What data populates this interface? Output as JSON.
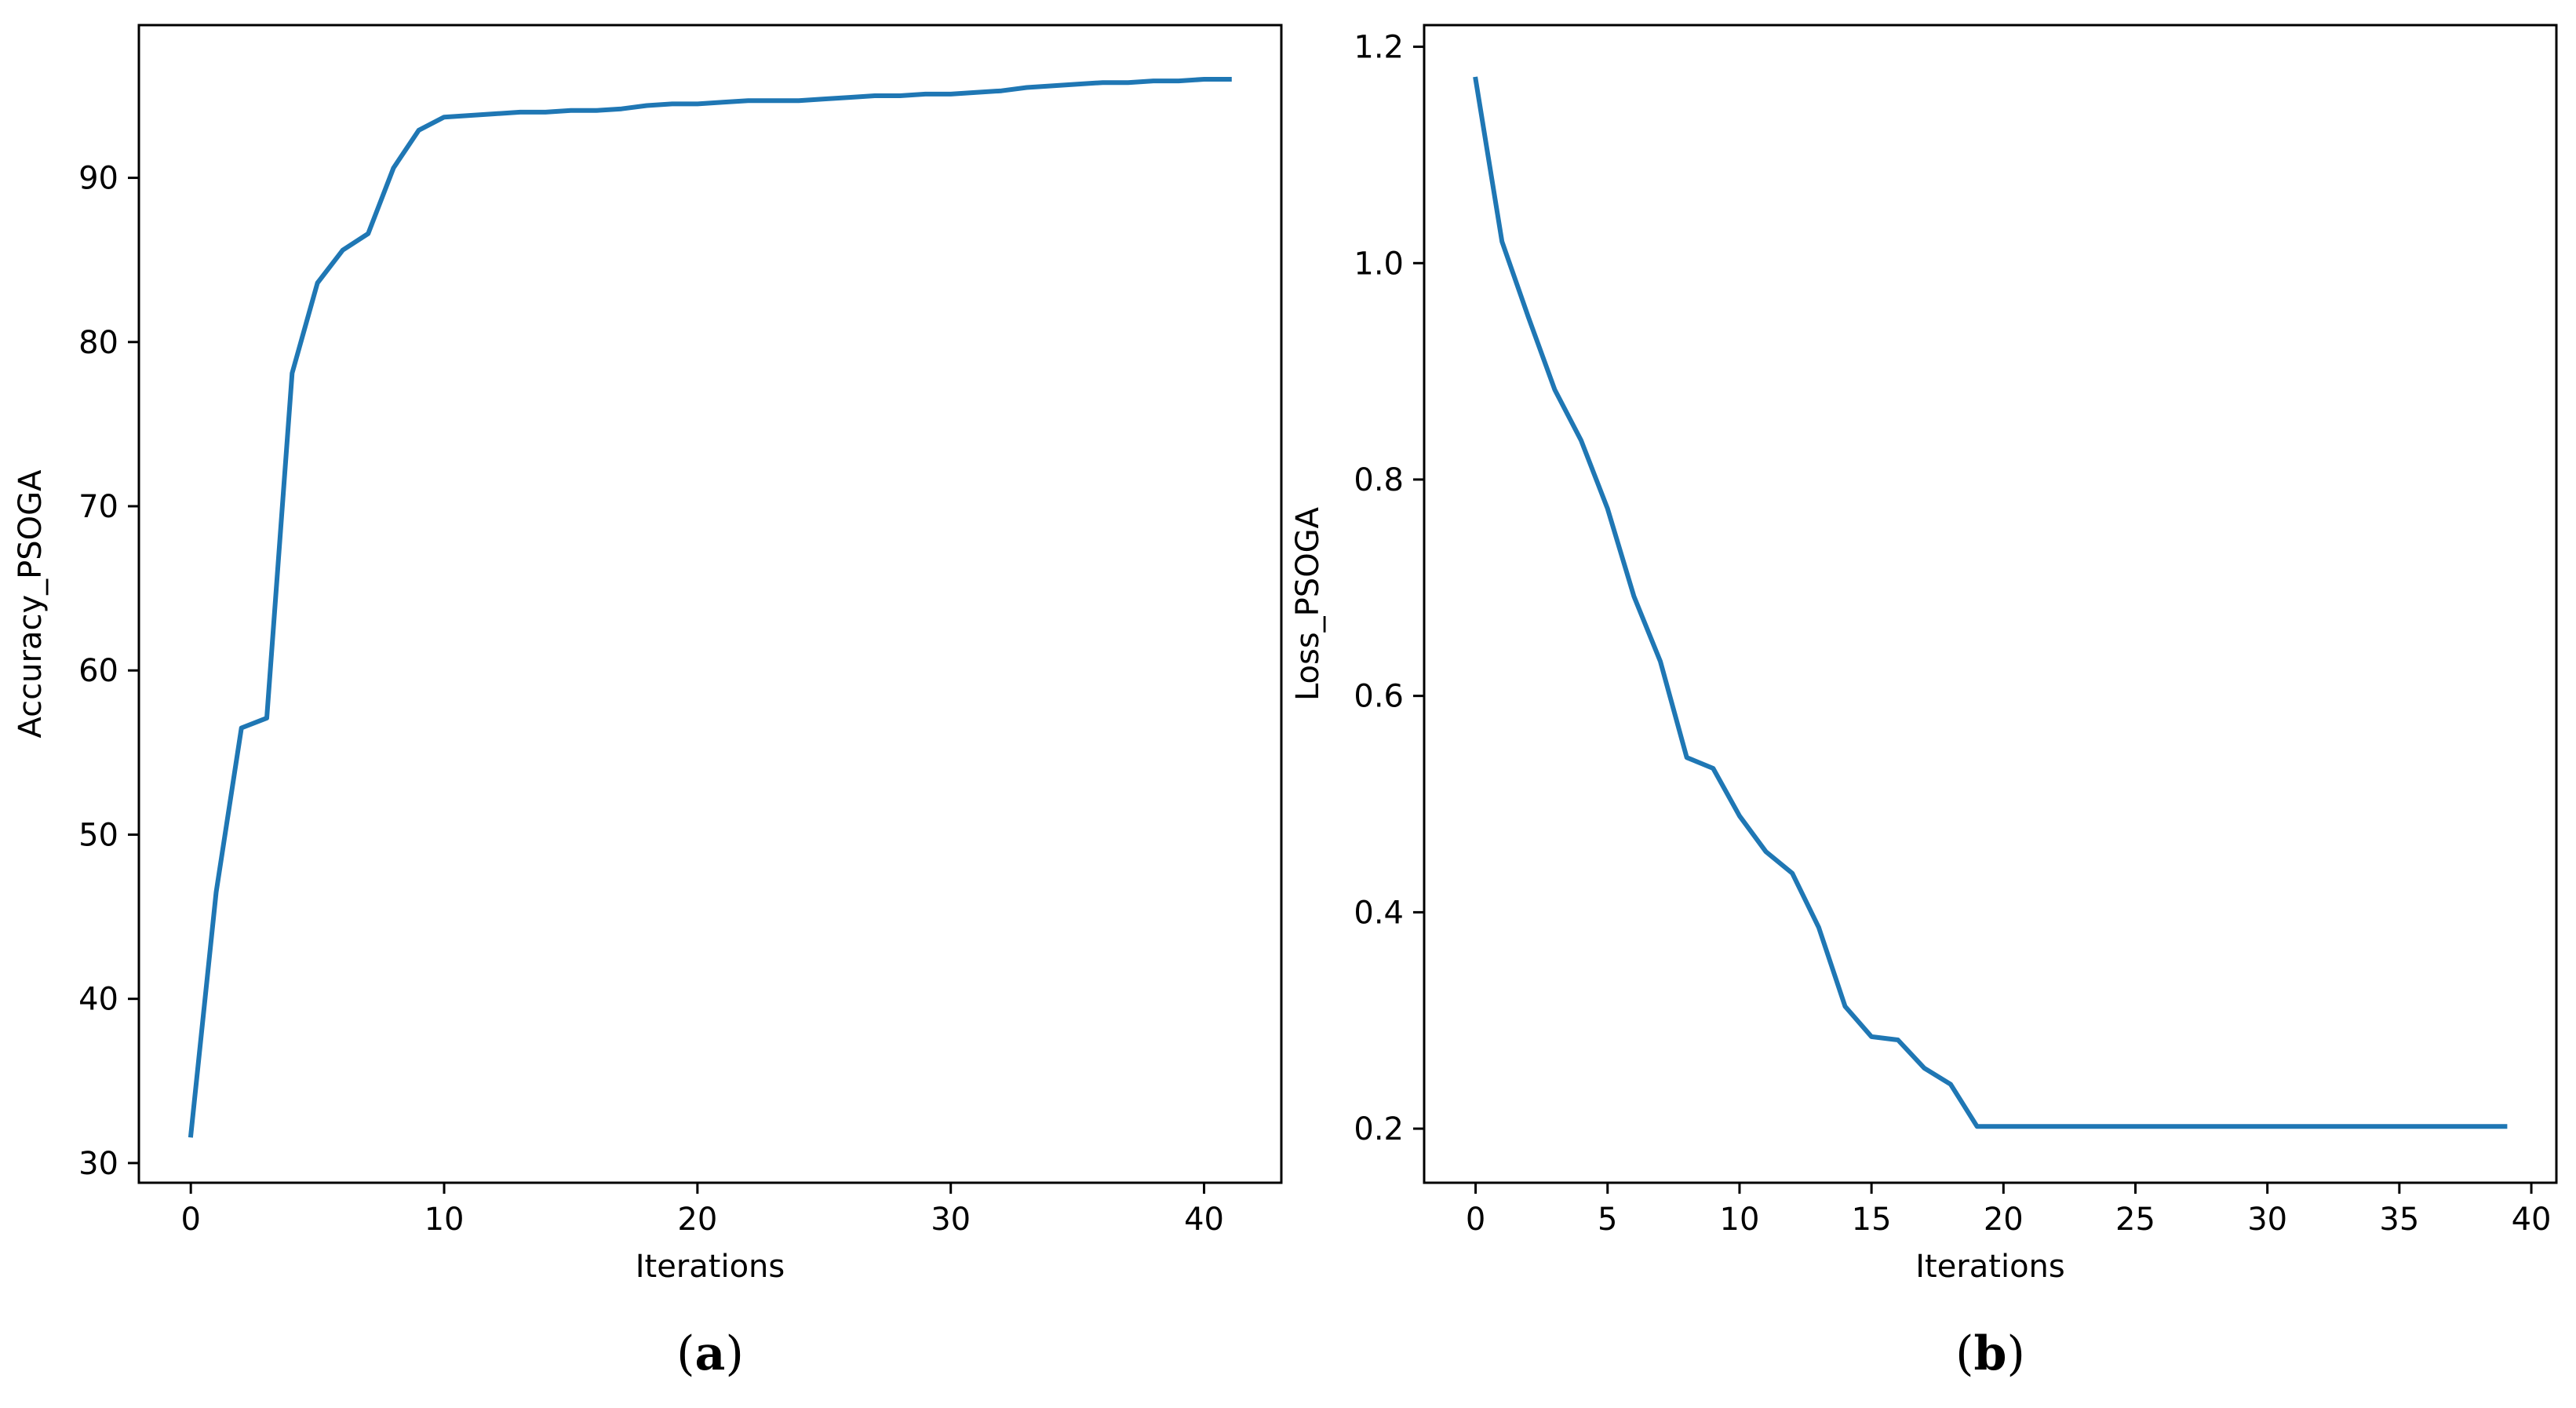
{
  "chart_data": [
    {
      "type": "line",
      "panel_label": "a",
      "title": "",
      "xlabel": "Iterations",
      "ylabel": "Accuracy_PSOGA",
      "xlim": [
        -2.05,
        43.05
      ],
      "ylim": [
        28.8,
        99.3
      ],
      "xticks": [
        0,
        10,
        20,
        30,
        40
      ],
      "yticks": [
        30,
        40,
        50,
        60,
        70,
        80,
        90
      ],
      "line_color": "#1f77b4",
      "grid": false,
      "x": [
        0,
        1,
        2,
        3,
        4,
        5,
        6,
        7,
        8,
        9,
        10,
        11,
        12,
        13,
        14,
        15,
        16,
        17,
        18,
        19,
        20,
        21,
        22,
        23,
        24,
        25,
        26,
        27,
        28,
        29,
        30,
        31,
        32,
        33,
        34,
        35,
        36,
        37,
        38,
        39,
        40,
        41
      ],
      "series": [
        {
          "values": [
            31.7,
            46.5,
            56.5,
            57.1,
            78.1,
            83.6,
            85.6,
            86.6,
            90.6,
            92.9,
            93.7,
            93.8,
            93.9,
            94.0,
            94.0,
            94.1,
            94.1,
            94.2,
            94.4,
            94.5,
            94.5,
            94.6,
            94.7,
            94.7,
            94.7,
            94.8,
            94.9,
            95.0,
            95.0,
            95.1,
            95.1,
            95.2,
            95.3,
            95.5,
            95.6,
            95.7,
            95.8,
            95.8,
            95.9,
            95.9,
            96.0,
            96.0
          ]
        }
      ]
    },
    {
      "type": "line",
      "panel_label": "b",
      "title": "",
      "xlabel": "Iterations",
      "ylabel": "Loss_PSOGA",
      "xlim": [
        -1.95,
        40.95
      ],
      "ylim": [
        0.15,
        1.22
      ],
      "xticks": [
        0,
        5,
        10,
        15,
        20,
        25,
        30,
        35,
        40
      ],
      "yticks": [
        0.2,
        0.4,
        0.6,
        0.8,
        1.0,
        1.2
      ],
      "ytick_labels": [
        "0.2",
        "0.4",
        "0.6",
        "0.8",
        "1.0",
        "1.2"
      ],
      "line_color": "#1f77b4",
      "grid": false,
      "x": [
        0,
        1,
        2,
        3,
        4,
        5,
        6,
        7,
        8,
        9,
        10,
        11,
        12,
        13,
        14,
        15,
        16,
        17,
        18,
        19,
        20,
        21,
        22,
        23,
        24,
        25,
        26,
        27,
        28,
        29,
        30,
        31,
        32,
        33,
        34,
        35,
        36,
        37,
        38,
        39
      ],
      "series": [
        {
          "values": [
            1.17,
            1.02,
            0.95,
            0.883,
            0.836,
            0.773,
            0.692,
            0.632,
            0.543,
            0.533,
            0.489,
            0.456,
            0.436,
            0.386,
            0.313,
            0.285,
            0.282,
            0.256,
            0.241,
            0.202,
            0.202,
            0.202,
            0.202,
            0.202,
            0.202,
            0.202,
            0.202,
            0.202,
            0.202,
            0.202,
            0.202,
            0.202,
            0.202,
            0.202,
            0.202,
            0.202,
            0.202,
            0.202,
            0.202,
            0.202
          ]
        }
      ]
    }
  ]
}
